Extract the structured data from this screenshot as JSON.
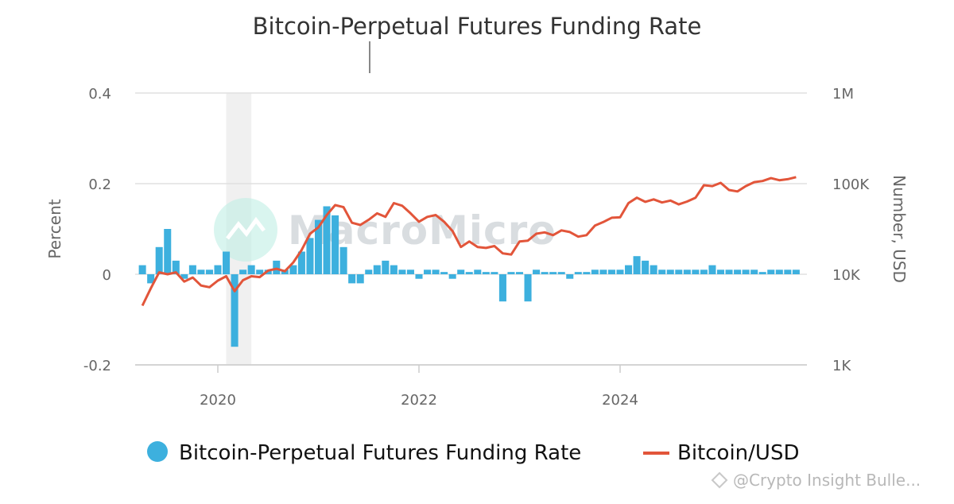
{
  "chart_data": {
    "type": "bar+line",
    "title": "Bitcoin-Perpetual Futures Funding Rate",
    "x_ticks": [
      "2020",
      "2022",
      "2024"
    ],
    "y_left": {
      "label": "Percent",
      "ticks": [
        "0.4",
        "0.2",
        "0",
        "-0.2"
      ],
      "range": [
        -0.2,
        0.4
      ]
    },
    "y_right": {
      "label": "Number, USD",
      "ticks": [
        "1M",
        "100K",
        "10K",
        "1K"
      ],
      "scale": "log",
      "range": [
        1000,
        1000000
      ]
    },
    "shaded_region": {
      "from": "2020-02",
      "to": "2020-05"
    },
    "series": [
      {
        "name": "Bitcoin-Perpetual Futures Funding Rate",
        "kind": "bar",
        "axis": "left",
        "color": "#3db0de",
        "x": [
          "2019-04",
          "2019-05",
          "2019-06",
          "2019-07",
          "2019-08",
          "2019-09",
          "2019-10",
          "2019-11",
          "2019-12",
          "2020-01",
          "2020-02",
          "2020-03",
          "2020-04",
          "2020-05",
          "2020-06",
          "2020-07",
          "2020-08",
          "2020-09",
          "2020-10",
          "2020-11",
          "2020-12",
          "2021-01",
          "2021-02",
          "2021-03",
          "2021-04",
          "2021-05",
          "2021-06",
          "2021-07",
          "2021-08",
          "2021-09",
          "2021-10",
          "2021-11",
          "2021-12",
          "2022-01",
          "2022-02",
          "2022-03",
          "2022-04",
          "2022-05",
          "2022-06",
          "2022-07",
          "2022-08",
          "2022-09",
          "2022-10",
          "2022-11",
          "2022-12",
          "2023-01",
          "2023-02",
          "2023-03",
          "2023-04",
          "2023-05",
          "2023-06",
          "2023-07",
          "2023-08",
          "2023-09",
          "2023-10",
          "2023-11",
          "2023-12",
          "2024-01",
          "2024-02",
          "2024-03",
          "2024-04",
          "2024-05",
          "2024-06",
          "2024-07",
          "2024-08",
          "2024-09",
          "2024-10",
          "2024-11",
          "2024-12",
          "2025-01",
          "2025-02",
          "2025-03",
          "2025-04",
          "2025-05",
          "2025-06",
          "2025-07",
          "2025-08",
          "2025-09",
          "2025-10"
        ],
        "values": [
          0.02,
          -0.02,
          0.06,
          0.1,
          0.03,
          -0.01,
          0.02,
          0.01,
          0.01,
          0.02,
          0.05,
          -0.16,
          0.01,
          0.02,
          0.01,
          0.01,
          0.03,
          0.01,
          0.02,
          0.05,
          0.08,
          0.12,
          0.15,
          0.13,
          0.06,
          -0.02,
          -0.02,
          0.01,
          0.02,
          0.03,
          0.02,
          0.01,
          0.01,
          -0.01,
          0.01,
          0.01,
          0.005,
          -0.01,
          0.01,
          0.005,
          0.01,
          0.005,
          0.005,
          -0.06,
          0.005,
          0.005,
          -0.06,
          0.01,
          0.005,
          0.005,
          0.005,
          -0.01,
          0.005,
          0.005,
          0.01,
          0.01,
          0.01,
          0.01,
          0.02,
          0.04,
          0.03,
          0.02,
          0.01,
          0.01,
          0.01,
          0.01,
          0.01,
          0.01,
          0.02,
          0.01,
          0.01,
          0.01,
          0.01,
          0.01,
          0.005,
          0.01,
          0.01,
          0.01,
          0.01
        ]
      },
      {
        "name": "Bitcoin/USD",
        "kind": "line",
        "axis": "right",
        "color": "#e2553a",
        "x": [
          "2019-04",
          "2019-05",
          "2019-06",
          "2019-07",
          "2019-08",
          "2019-09",
          "2019-10",
          "2019-11",
          "2019-12",
          "2020-01",
          "2020-02",
          "2020-03",
          "2020-04",
          "2020-05",
          "2020-06",
          "2020-07",
          "2020-08",
          "2020-09",
          "2020-10",
          "2020-11",
          "2020-12",
          "2021-01",
          "2021-02",
          "2021-03",
          "2021-04",
          "2021-05",
          "2021-06",
          "2021-07",
          "2021-08",
          "2021-09",
          "2021-10",
          "2021-11",
          "2021-12",
          "2022-01",
          "2022-02",
          "2022-03",
          "2022-04",
          "2022-05",
          "2022-06",
          "2022-07",
          "2022-08",
          "2022-09",
          "2022-10",
          "2022-11",
          "2022-12",
          "2023-01",
          "2023-02",
          "2023-03",
          "2023-04",
          "2023-05",
          "2023-06",
          "2023-07",
          "2023-08",
          "2023-09",
          "2023-10",
          "2023-11",
          "2023-12",
          "2024-01",
          "2024-02",
          "2024-03",
          "2024-04",
          "2024-05",
          "2024-06",
          "2024-07",
          "2024-08",
          "2024-09",
          "2024-10",
          "2024-11",
          "2024-12",
          "2025-01",
          "2025-02",
          "2025-03",
          "2025-04",
          "2025-05",
          "2025-06",
          "2025-07",
          "2025-08",
          "2025-09",
          "2025-10"
        ],
        "values": [
          4500,
          7000,
          10500,
          10000,
          10500,
          8300,
          9200,
          7500,
          7200,
          8500,
          9500,
          6500,
          8600,
          9500,
          9300,
          11000,
          11500,
          10800,
          13500,
          18500,
          28000,
          33000,
          45000,
          58000,
          55000,
          37000,
          35000,
          40000,
          47000,
          43000,
          61000,
          57000,
          47000,
          38000,
          43000,
          45000,
          38000,
          30000,
          20000,
          23000,
          20000,
          19500,
          20500,
          17000,
          16500,
          23000,
          23500,
          28000,
          29000,
          27000,
          30500,
          29200,
          26000,
          27000,
          34500,
          37700,
          42000,
          42500,
          61000,
          70000,
          63000,
          67000,
          62000,
          65000,
          59000,
          63500,
          70000,
          96000,
          94000,
          102000,
          85000,
          82000,
          94000,
          104000,
          107000,
          115000,
          109000,
          112000,
          118000
        ]
      }
    ],
    "legend": {
      "position": "bottom"
    },
    "watermark": "MacroMicro",
    "credit": "@Crypto Insight Bulle..."
  }
}
